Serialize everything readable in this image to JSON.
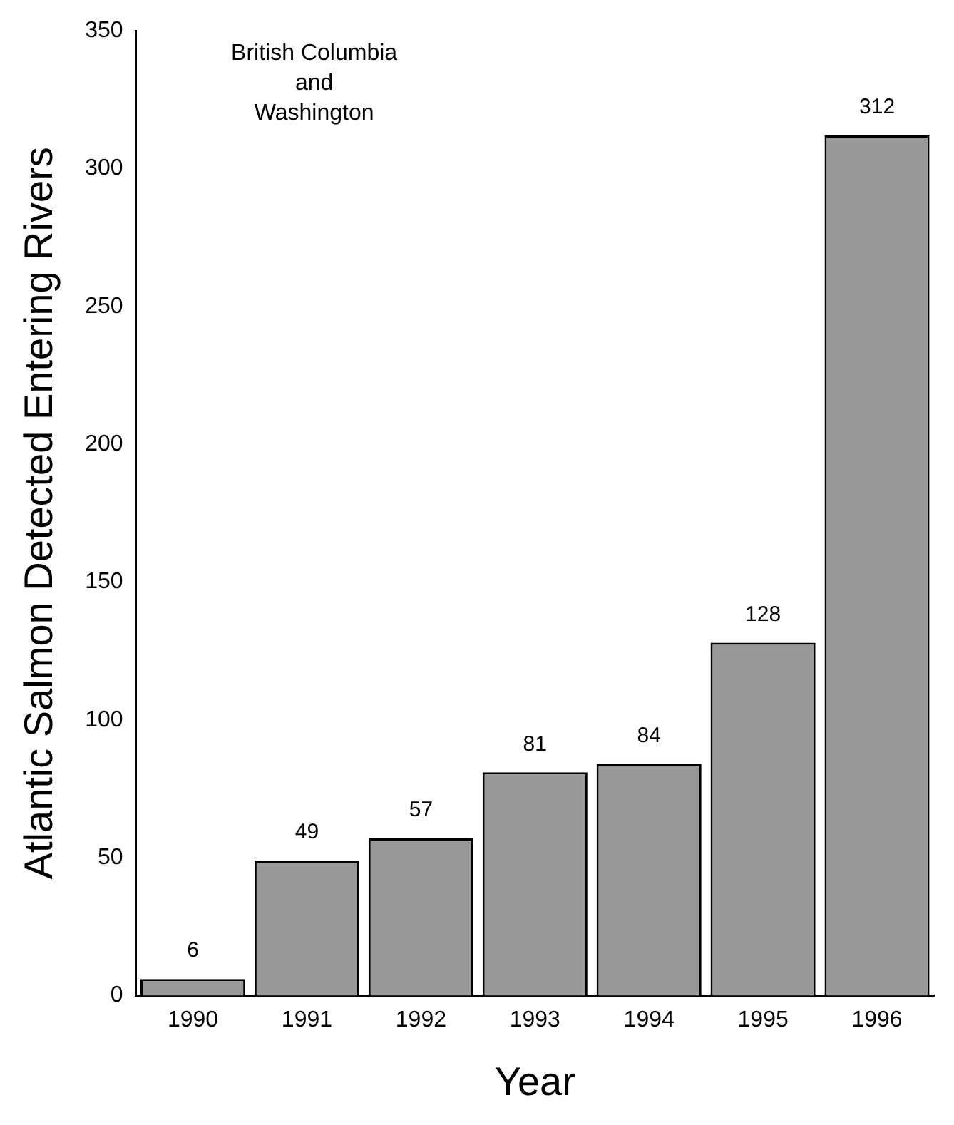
{
  "chart_data": {
    "type": "bar",
    "xlabel": "Year",
    "ylabel": "Atlantic Salmon Detected Entering Rivers",
    "categories": [
      "1990",
      "1991",
      "1992",
      "1993",
      "1994",
      "1995",
      "1996"
    ],
    "values": [
      6,
      49,
      57,
      81,
      84,
      128,
      312
    ],
    "color": "#999999",
    "ylim": [
      0,
      350
    ],
    "yticks": [
      0,
      50,
      100,
      150,
      200,
      250,
      300,
      350
    ],
    "grid": false,
    "legend": false,
    "data_labels": true,
    "annotations": [
      "British Columbia\nand\nWashington"
    ]
  }
}
